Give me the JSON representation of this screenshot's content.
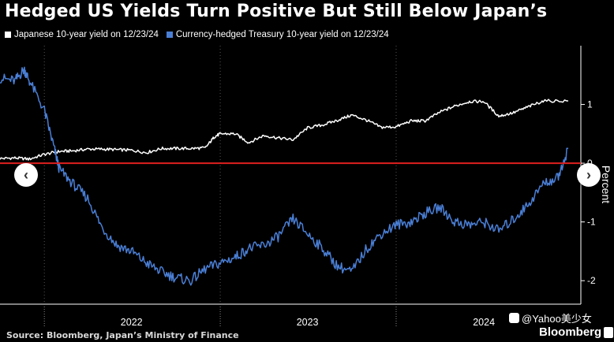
{
  "title": "Hedged US Yields Turn Positive But Still Below Japan’s",
  "colors": {
    "background": "#000000",
    "japan": "#ffffff",
    "hedged_us": "#4a7fd6",
    "zero_line": "#e02020",
    "axis": "#ffffff"
  },
  "chart_data": {
    "type": "line",
    "title": "Hedged US Yields Turn Positive But Still Below Japan’s",
    "xlabel": "",
    "ylabel": "Percent",
    "ylim": [
      -2.4,
      2.0
    ],
    "y_ticks": [
      1,
      0,
      -1,
      -2
    ],
    "y_tick_labels": [
      "1",
      "0",
      "-1",
      "-2"
    ],
    "x_range": [
      "2021-10-01",
      "2024-12-23"
    ],
    "x_tick_labels": [
      "2022",
      "2023",
      "2024"
    ],
    "x_ticks": [
      "2022-01-01",
      "2023-01-01",
      "2024-01-01"
    ],
    "grid": "vertical dotted at year boundaries",
    "legend": "top-left",
    "reference_line": {
      "y": 0,
      "color": "#e02020"
    },
    "series": [
      {
        "name": "Japanese 10-year yield on 12/23/24",
        "color": "#ffffff",
        "x": [
          "2021-10-01",
          "2021-11-01",
          "2021-12-01",
          "2022-01-01",
          "2022-02-01",
          "2022-03-01",
          "2022-04-01",
          "2022-05-01",
          "2022-06-01",
          "2022-07-01",
          "2022-08-01",
          "2022-09-01",
          "2022-10-01",
          "2022-11-01",
          "2022-12-01",
          "2022-12-20",
          "2023-01-01",
          "2023-02-01",
          "2023-03-01",
          "2023-04-01",
          "2023-05-01",
          "2023-06-01",
          "2023-07-01",
          "2023-08-01",
          "2023-09-01",
          "2023-10-01",
          "2023-11-01",
          "2023-12-01",
          "2024-01-01",
          "2024-02-01",
          "2024-03-01",
          "2024-04-01",
          "2024-05-01",
          "2024-06-01",
          "2024-07-01",
          "2024-08-01",
          "2024-09-01",
          "2024-10-01",
          "2024-11-01",
          "2024-12-23"
        ],
        "values": [
          0.08,
          0.09,
          0.07,
          0.15,
          0.2,
          0.21,
          0.24,
          0.24,
          0.23,
          0.22,
          0.18,
          0.25,
          0.25,
          0.25,
          0.26,
          0.45,
          0.5,
          0.5,
          0.35,
          0.47,
          0.43,
          0.4,
          0.6,
          0.65,
          0.73,
          0.82,
          0.73,
          0.61,
          0.62,
          0.72,
          0.72,
          0.87,
          0.97,
          1.05,
          1.05,
          0.8,
          0.86,
          0.96,
          1.06,
          1.06
        ]
      },
      {
        "name": "Currency-hedged Treasury 10-year yield on 12/23/24",
        "color": "#4a7fd6",
        "x": [
          "2021-10-01",
          "2021-11-01",
          "2021-11-20",
          "2021-12-01",
          "2022-01-01",
          "2022-01-20",
          "2022-02-01",
          "2022-03-01",
          "2022-04-01",
          "2022-05-01",
          "2022-06-01",
          "2022-07-01",
          "2022-08-01",
          "2022-09-01",
          "2022-10-01",
          "2022-11-01",
          "2022-12-01",
          "2023-01-01",
          "2023-02-01",
          "2023-03-01",
          "2023-04-01",
          "2023-05-01",
          "2023-06-01",
          "2023-07-01",
          "2023-08-01",
          "2023-09-01",
          "2023-10-01",
          "2023-11-01",
          "2023-12-01",
          "2024-01-01",
          "2024-02-01",
          "2024-03-01",
          "2024-04-01",
          "2024-05-01",
          "2024-06-01",
          "2024-07-01",
          "2024-08-01",
          "2024-09-01",
          "2024-10-01",
          "2024-11-01",
          "2024-12-01",
          "2024-12-23"
        ],
        "values": [
          1.45,
          1.4,
          1.6,
          1.4,
          0.9,
          0.3,
          -0.1,
          -0.35,
          -0.6,
          -1.1,
          -1.4,
          -1.5,
          -1.7,
          -1.85,
          -1.95,
          -2.0,
          -1.8,
          -1.7,
          -1.6,
          -1.45,
          -1.4,
          -1.25,
          -0.95,
          -1.2,
          -1.45,
          -1.75,
          -1.85,
          -1.45,
          -1.2,
          -1.05,
          -1.0,
          -0.85,
          -0.75,
          -1.0,
          -1.05,
          -1.0,
          -1.15,
          -0.95,
          -0.7,
          -0.35,
          -0.25,
          0.25
        ]
      }
    ]
  },
  "source": "Source: Bloomberg, Japan’s Ministry of Finance",
  "brand": "Bloomberg",
  "watermark": "@Yahoo美少女",
  "nav": {
    "prev_label": "‹",
    "next_label": "›"
  }
}
